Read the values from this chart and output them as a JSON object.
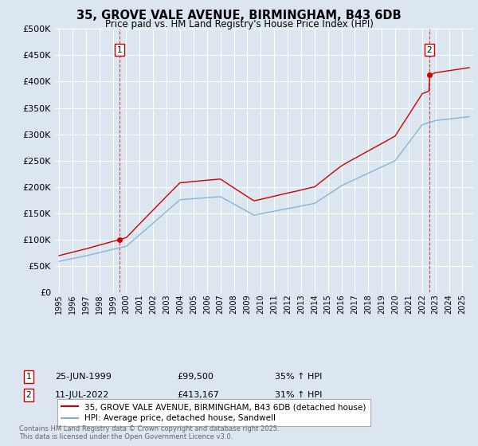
{
  "title": "35, GROVE VALE AVENUE, BIRMINGHAM, B43 6DB",
  "subtitle": "Price paid vs. HM Land Registry's House Price Index (HPI)",
  "background_color": "#dce6f1",
  "plot_bg_color": "#dce6f1",
  "ylim": [
    0,
    500000
  ],
  "yticks": [
    0,
    50000,
    100000,
    150000,
    200000,
    250000,
    300000,
    350000,
    400000,
    450000,
    500000
  ],
  "sale1_date": 1999.48,
  "sale1_price": 99500,
  "sale1_label": "1",
  "sale2_date": 2022.53,
  "sale2_price": 413167,
  "sale2_label": "2",
  "legend_line1": "35, GROVE VALE AVENUE, BIRMINGHAM, B43 6DB (detached house)",
  "legend_line2": "HPI: Average price, detached house, Sandwell",
  "annotation1": [
    "1",
    "25-JUN-1999",
    "£99,500",
    "35% ↑ HPI"
  ],
  "annotation2": [
    "2",
    "11-JUL-2022",
    "£413,167",
    "31% ↑ HPI"
  ],
  "footer": "Contains HM Land Registry data © Crown copyright and database right 2025.\nThis data is licensed under the Open Government Licence v3.0.",
  "red_color": "#cc0000",
  "blue_color": "#7bafd4",
  "vline_color": "#cc0000",
  "grid_color": "#ffffff",
  "xstart": 1995,
  "xend": 2025
}
